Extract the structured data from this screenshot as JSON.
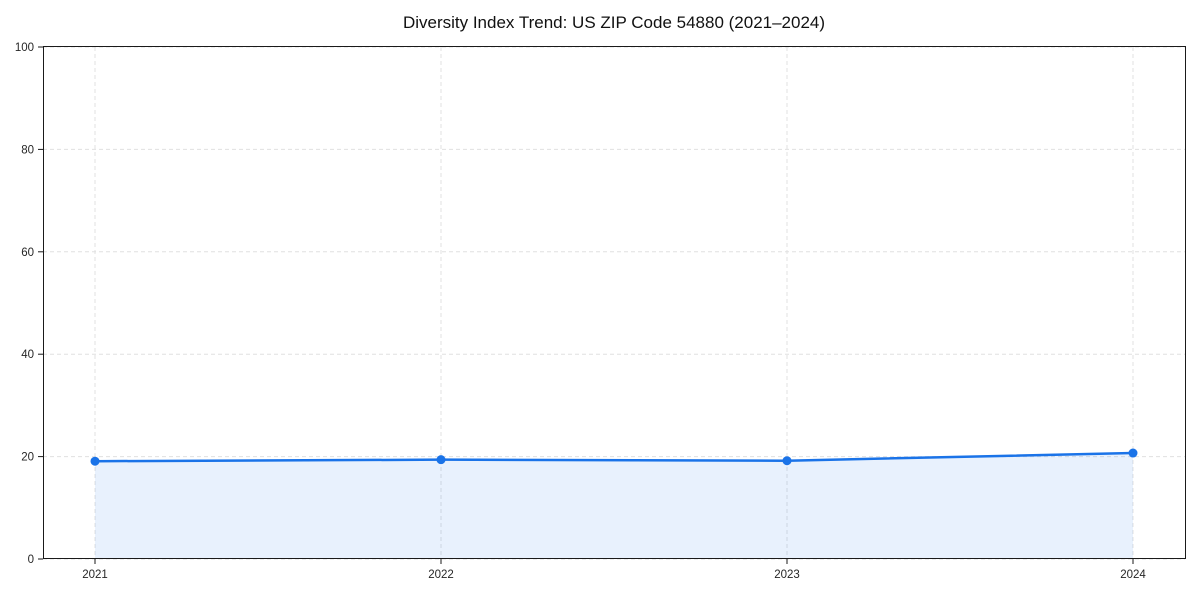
{
  "chart_data": {
    "type": "line",
    "title": "Diversity Index Trend: US ZIP Code 54880 (2021–2024)",
    "categories": [
      "2021",
      "2022",
      "2023",
      "2024"
    ],
    "series": [
      {
        "name": "Diversity Index",
        "values": [
          19.1,
          19.4,
          19.2,
          20.7
        ]
      }
    ],
    "xlabel": "",
    "ylabel": "",
    "ylim": [
      0,
      100
    ],
    "yticks": [
      0,
      20,
      40,
      60,
      80,
      100
    ],
    "grid": true,
    "grid_style": "dashed",
    "grid_color": "#e0e0e0",
    "legend_position": "none",
    "area_fill": true,
    "line_color": "#1a73e8",
    "area_fill_color": "#1a73e8",
    "area_fill_opacity": 0.1,
    "marker": "circle",
    "spine_color": "#1a1a1a",
    "background_color": "#ffffff"
  }
}
